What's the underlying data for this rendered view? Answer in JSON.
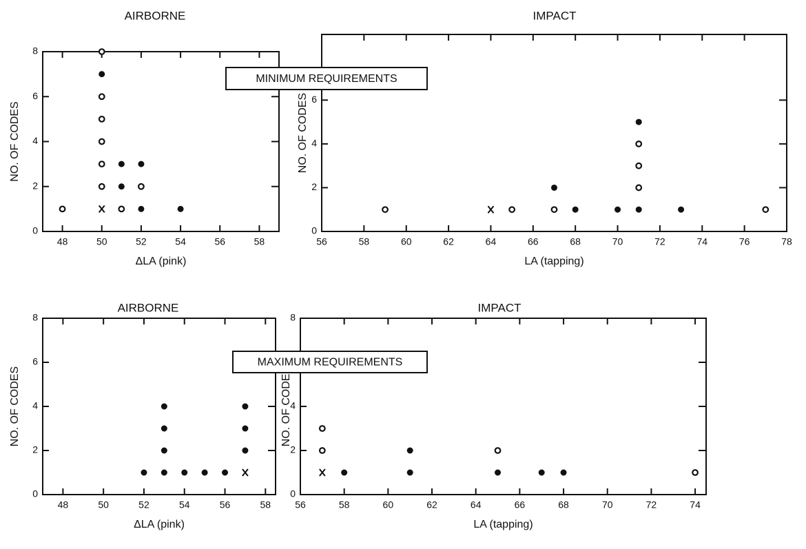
{
  "chart_data": [
    {
      "type": "scatter",
      "title": "AIRBORNE",
      "xlabel": "ΔLA (pink)",
      "ylabel": "NO. OF CODES",
      "xlim": [
        47,
        59
      ],
      "ylim": [
        0,
        8
      ],
      "xticks": [
        48,
        50,
        52,
        54,
        56,
        58
      ],
      "yticks": [
        0,
        2,
        4,
        6,
        8
      ],
      "series": [
        {
          "marker": "filled",
          "color": "#111111",
          "x": [
            50,
            51,
            51,
            52,
            52,
            54
          ],
          "values": [
            7,
            3,
            2,
            3,
            1,
            1
          ]
        },
        {
          "marker": "open",
          "color": "#111111",
          "x": [
            48,
            50,
            50,
            50,
            50,
            50,
            50,
            51,
            52
          ],
          "values": [
            1,
            8,
            6,
            5,
            4,
            3,
            2,
            1,
            2
          ]
        },
        {
          "marker": "x",
          "color": "#111111",
          "x": [
            50
          ],
          "values": [
            1
          ]
        }
      ]
    },
    {
      "type": "scatter",
      "title": "IMPACT",
      "xlabel": "LA (tapping)",
      "ylabel": "NO. OF CODES",
      "xlim": [
        56,
        78
      ],
      "ylim": [
        0,
        9
      ],
      "xticks": [
        56,
        58,
        60,
        62,
        64,
        66,
        68,
        70,
        72,
        74,
        76,
        78
      ],
      "yticks": [
        0,
        2,
        4,
        6
      ],
      "series": [
        {
          "marker": "filled",
          "color": "#111111",
          "x": [
            67,
            68,
            70,
            71,
            71,
            73
          ],
          "values": [
            2,
            1,
            1,
            1,
            5,
            1
          ]
        },
        {
          "marker": "open",
          "color": "#111111",
          "x": [
            59,
            65,
            67,
            71,
            71,
            71,
            77
          ],
          "values": [
            1,
            1,
            1,
            2,
            3,
            4,
            1
          ]
        },
        {
          "marker": "x",
          "color": "#111111",
          "x": [
            64
          ],
          "values": [
            1
          ]
        }
      ]
    },
    {
      "type": "scatter",
      "title": "AIRBORNE",
      "xlabel": "ΔLA (pink)",
      "ylabel": "NO. OF CODES",
      "xlim": [
        47,
        58.5
      ],
      "ylim": [
        0,
        8
      ],
      "xticks": [
        48,
        50,
        52,
        54,
        56,
        58
      ],
      "yticks": [
        0,
        2,
        4,
        6,
        8
      ],
      "series": [
        {
          "marker": "filled",
          "color": "#111111",
          "x": [
            52,
            53,
            53,
            53,
            53,
            54,
            55,
            56,
            57,
            57,
            57
          ],
          "values": [
            1,
            1,
            2,
            3,
            4,
            1,
            1,
            1,
            2,
            3,
            4
          ]
        },
        {
          "marker": "x",
          "color": "#111111",
          "x": [
            57
          ],
          "values": [
            1
          ]
        }
      ]
    },
    {
      "type": "scatter",
      "title": "IMPACT",
      "xlabel": "LA (tapping)",
      "ylabel": "NO. OF CODES",
      "xlim": [
        56,
        74.5
      ],
      "ylim": [
        0,
        8
      ],
      "xticks": [
        56,
        58,
        60,
        62,
        64,
        66,
        68,
        70,
        72,
        74
      ],
      "yticks": [
        0,
        2,
        4,
        6,
        8
      ],
      "series": [
        {
          "marker": "filled",
          "color": "#111111",
          "x": [
            58,
            61,
            61,
            65,
            67,
            68
          ],
          "values": [
            1,
            1,
            2,
            1,
            1,
            1
          ]
        },
        {
          "marker": "open",
          "color": "#111111",
          "x": [
            57,
            57,
            65,
            74
          ],
          "values": [
            2,
            3,
            2,
            1
          ]
        },
        {
          "marker": "x",
          "color": "#111111",
          "x": [
            57
          ],
          "values": [
            1
          ]
        }
      ]
    }
  ],
  "annotations": [
    "MINIMUM REQUIREMENTS",
    "MAXIMUM REQUIREMENTS"
  ]
}
